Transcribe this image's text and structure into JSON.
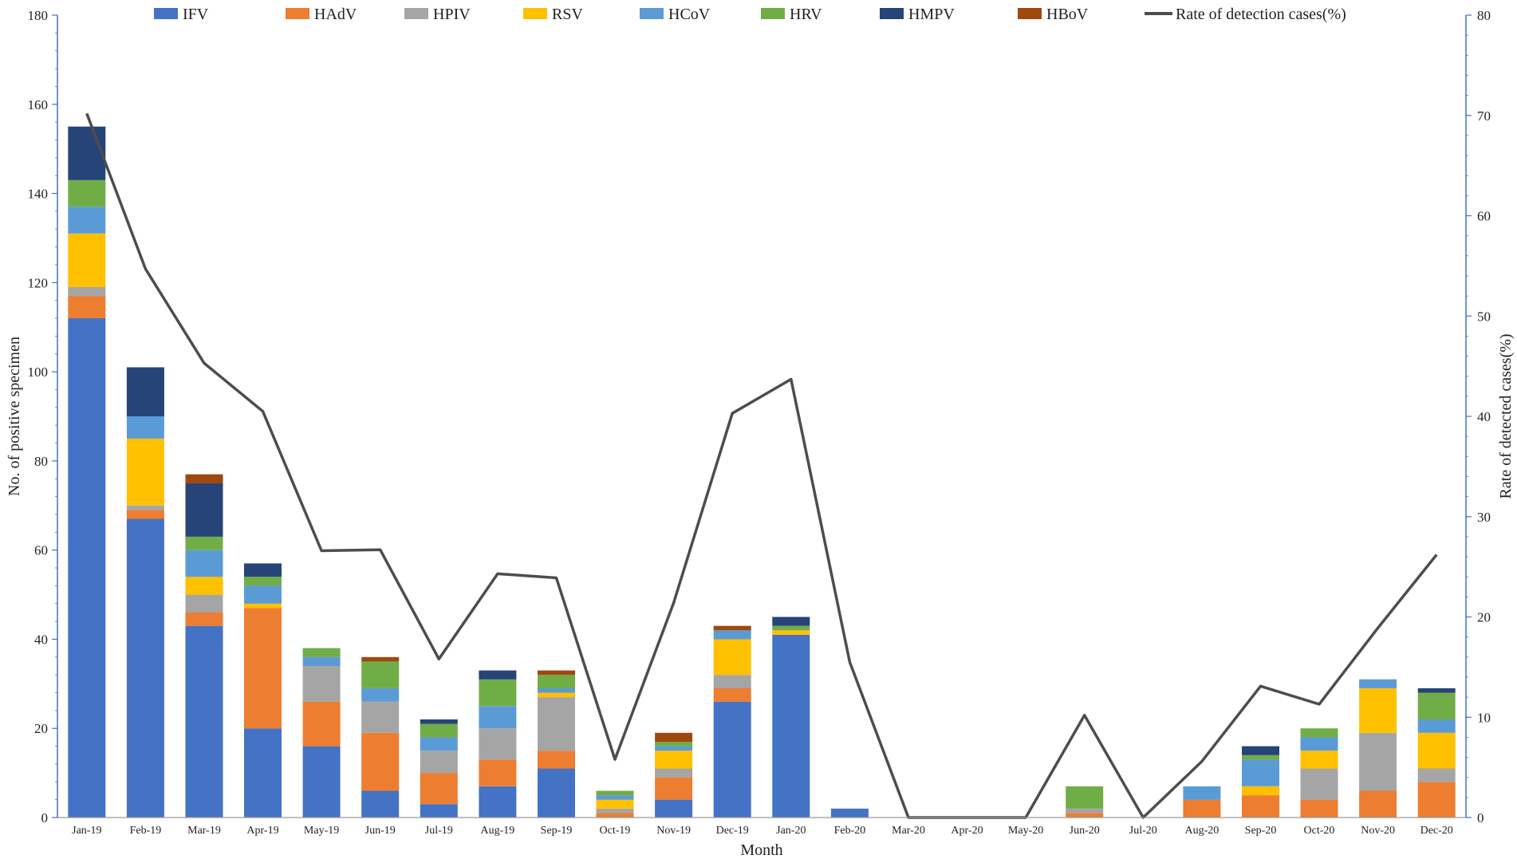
{
  "chart_data": {
    "type": "bar",
    "stacked": true,
    "title": "",
    "xlabel": "Month",
    "ylabel": "No. of positive specimen",
    "y2label": "Rate of detected cases(%)",
    "ylim": [
      0,
      180
    ],
    "y2lim": [
      0,
      80
    ],
    "yticks": [
      0,
      20,
      40,
      60,
      80,
      100,
      120,
      140,
      160,
      180
    ],
    "y2ticks": [
      0,
      10,
      20,
      30,
      40,
      50,
      60,
      70,
      80
    ],
    "legend_position": "top",
    "categories": [
      "Jan-19",
      "Feb-19",
      "Mar-19",
      "Apr-19",
      "May-19",
      "Jun-19",
      "Jul-19",
      "Aug-19",
      "Sep-19",
      "Oct-19",
      "Nov-19",
      "Dec-19",
      "Jan-20",
      "Feb-20",
      "Mar-20",
      "Apr-20",
      "May-20",
      "Jun-20",
      "Jul-20",
      "Aug-20",
      "Sep-20",
      "Oct-20",
      "Nov-20",
      "Dec-20"
    ],
    "series": [
      {
        "name": "IFV",
        "color": "#4472c4",
        "values": [
          112,
          67,
          43,
          20,
          16,
          6,
          3,
          7,
          11,
          0,
          4,
          26,
          41,
          2,
          0,
          0,
          0,
          0,
          0,
          0,
          0,
          0,
          0,
          0
        ]
      },
      {
        "name": "HAdV",
        "color": "#ed7d31",
        "values": [
          5,
          2,
          3,
          27,
          10,
          13,
          7,
          6,
          4,
          1,
          5,
          3,
          0,
          0,
          0,
          0,
          0,
          1,
          0,
          4,
          5,
          4,
          6,
          8
        ]
      },
      {
        "name": "HPIV",
        "color": "#a5a5a5",
        "values": [
          2,
          1,
          4,
          0,
          8,
          7,
          5,
          7,
          12,
          1,
          2,
          3,
          0,
          0,
          0,
          0,
          0,
          1,
          0,
          0,
          0,
          7,
          13,
          3
        ]
      },
      {
        "name": "RSV",
        "color": "#ffc000",
        "values": [
          12,
          15,
          4,
          1,
          0,
          0,
          0,
          0,
          1,
          2,
          4,
          8,
          1,
          0,
          0,
          0,
          0,
          0,
          0,
          0,
          2,
          4,
          10,
          8
        ]
      },
      {
        "name": "HCoV",
        "color": "#5b9bd5",
        "values": [
          6,
          5,
          6,
          4,
          2,
          3,
          3,
          5,
          1,
          1,
          1,
          2,
          0,
          0,
          0,
          0,
          0,
          0,
          0,
          3,
          6,
          3,
          2,
          3
        ]
      },
      {
        "name": "HRV",
        "color": "#70ad47",
        "values": [
          6,
          0,
          3,
          2,
          2,
          6,
          3,
          6,
          3,
          1,
          1,
          0,
          1,
          0,
          0,
          0,
          0,
          5,
          0,
          0,
          1,
          2,
          0,
          6
        ]
      },
      {
        "name": "HMPV",
        "color": "#264478",
        "values": [
          12,
          11,
          12,
          3,
          0,
          0,
          1,
          2,
          0,
          0,
          0,
          0,
          2,
          0,
          0,
          0,
          0,
          0,
          0,
          0,
          2,
          0,
          0,
          1
        ]
      },
      {
        "name": "HBoV",
        "color": "#9e480e",
        "values": [
          0,
          0,
          2,
          0,
          0,
          1,
          0,
          0,
          1,
          0,
          2,
          1,
          0,
          0,
          0,
          0,
          0,
          0,
          0,
          0,
          0,
          0,
          0,
          0
        ]
      }
    ],
    "line": {
      "name": "Rate of detection cases(%)",
      "axis": "right",
      "color": "#4d4d4d",
      "values": [
        70.2,
        54.7,
        45.3,
        40.5,
        26.6,
        26.7,
        15.8,
        24.3,
        23.9,
        5.8,
        21.4,
        40.3,
        43.7,
        15.5,
        0,
        0,
        0,
        10.2,
        0,
        5.6,
        13.1,
        11.3,
        18.9,
        26.2
      ]
    }
  }
}
